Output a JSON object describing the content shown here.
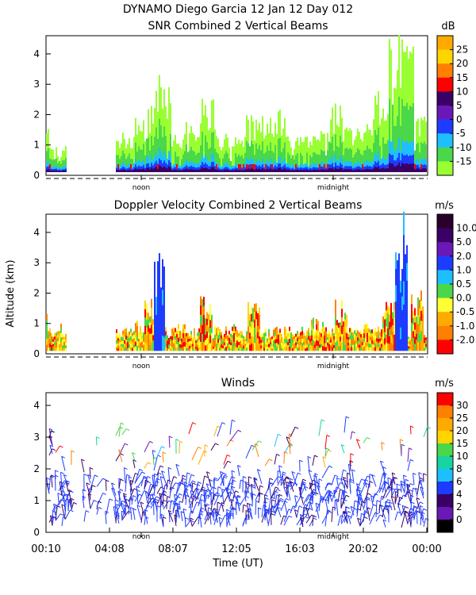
{
  "header": {
    "line1": "DYNAMO Diego Garcia  12 Jan 12 Day 012"
  },
  "shared": {
    "ylabel": "Altitude (km)",
    "xlabel": "Time (UT)",
    "noon_label": "noon",
    "midnight_label": "midnight"
  },
  "chart_data": [
    {
      "type": "heatmap",
      "title": "SNR Combined 2 Vertical Beams",
      "unit": "dB",
      "ylim": [
        0,
        4.6
      ],
      "yticks": [
        "0",
        "1",
        "2",
        "3",
        "4"
      ],
      "colorbar_labels": [
        "25",
        "20",
        "15",
        "10",
        "5",
        "0",
        "-5",
        "-10",
        "-15"
      ],
      "colorbar_colors": [
        "#ffaa00",
        "#ffd500",
        "#ff7f00",
        "#ff0000",
        "#3b0066",
        "#6a18b8",
        "#1e3cff",
        "#1ebfff",
        "#4ad74a",
        "#99ff33"
      ],
      "columns": [
        {
          "t": 0.0,
          "h": 1.5,
          "lvl": 0.3
        },
        {
          "t": 0.35,
          "h": 1.0,
          "lvl": 0.25
        },
        {
          "t": 0.7,
          "h": 0.9,
          "lvl": 0.25
        },
        {
          "t": 4.3,
          "h": 1.2,
          "lvl": 0.3
        },
        {
          "t": 5.0,
          "h": 1.3,
          "lvl": 0.35
        },
        {
          "t": 5.8,
          "h": 1.8,
          "lvl": 0.4
        },
        {
          "t": 6.6,
          "h": 2.3,
          "lvl": 0.5
        },
        {
          "t": 7.0,
          "h": 3.5,
          "lvl": 0.7
        },
        {
          "t": 7.5,
          "h": 3.2,
          "lvl": 0.6
        },
        {
          "t": 8.2,
          "h": 1.4,
          "lvl": 0.35
        },
        {
          "t": 9.0,
          "h": 1.7,
          "lvl": 0.4
        },
        {
          "t": 10.2,
          "h": 2.5,
          "lvl": 0.45
        },
        {
          "t": 11.0,
          "h": 1.3,
          "lvl": 0.35
        },
        {
          "t": 12.0,
          "h": 1.2,
          "lvl": 0.3
        },
        {
          "t": 13.0,
          "h": 1.9,
          "lvl": 0.4
        },
        {
          "t": 14.5,
          "h": 2.1,
          "lvl": 0.35
        },
        {
          "t": 15.5,
          "h": 1.2,
          "lvl": 0.3
        },
        {
          "t": 17.0,
          "h": 1.4,
          "lvl": 0.3
        },
        {
          "t": 18.2,
          "h": 2.3,
          "lvl": 0.45
        },
        {
          "t": 19.0,
          "h": 1.5,
          "lvl": 0.35
        },
        {
          "t": 20.0,
          "h": 1.6,
          "lvl": 0.35
        },
        {
          "t": 21.0,
          "h": 2.8,
          "lvl": 0.5
        },
        {
          "t": 22.0,
          "h": 4.6,
          "lvl": 0.9
        },
        {
          "t": 22.7,
          "h": 4.6,
          "lvl": 1.0
        },
        {
          "t": 23.5,
          "h": 2.0,
          "lvl": 0.4
        }
      ]
    },
    {
      "type": "heatmap",
      "title": "Doppler Velocity Combined 2 Vertical Beams",
      "unit": "m/s",
      "ylim": [
        0,
        4.6
      ],
      "yticks": [
        "0",
        "1",
        "2",
        "3",
        "4"
      ],
      "colorbar_labels": [
        "10.0",
        "5.0",
        "2.0",
        "1.0",
        "0.5",
        "0.0",
        "-0.5",
        "-1.0",
        "-2.0"
      ],
      "colorbar_colors": [
        "#2a002a",
        "#3b0066",
        "#6a18b8",
        "#1e3cff",
        "#1ebfff",
        "#4ad74a",
        "#ffff33",
        "#ffaa00",
        "#ff7f00",
        "#ff0000"
      ],
      "columns": [
        {
          "t": 0.0,
          "h": 1.3,
          "v": "warm"
        },
        {
          "t": 0.5,
          "h": 0.9,
          "v": "warm"
        },
        {
          "t": 4.5,
          "h": 0.8,
          "v": "warm"
        },
        {
          "t": 5.5,
          "h": 1.0,
          "v": "warm"
        },
        {
          "t": 6.5,
          "h": 2.0,
          "v": "warm"
        },
        {
          "t": 7.0,
          "h": 3.4,
          "v": "blue"
        },
        {
          "t": 8.5,
          "h": 1.0,
          "v": "warm"
        },
        {
          "t": 10.0,
          "h": 1.9,
          "v": "warm"
        },
        {
          "t": 12.0,
          "h": 0.9,
          "v": "warm"
        },
        {
          "t": 13.0,
          "h": 1.6,
          "v": "warm"
        },
        {
          "t": 15.0,
          "h": 0.8,
          "v": "warm"
        },
        {
          "t": 17.0,
          "h": 1.1,
          "v": "warm"
        },
        {
          "t": 18.5,
          "h": 1.7,
          "v": "warm"
        },
        {
          "t": 20.0,
          "h": 0.9,
          "v": "warm"
        },
        {
          "t": 21.5,
          "h": 1.8,
          "v": "warm"
        },
        {
          "t": 22.3,
          "h": 4.6,
          "v": "blue"
        },
        {
          "t": 23.3,
          "h": 2.2,
          "v": "warm"
        }
      ]
    },
    {
      "type": "scatter",
      "title": "Winds",
      "unit": "m/s",
      "ylim": [
        0,
        4.4
      ],
      "yticks": [
        "0",
        "1",
        "2",
        "3",
        "4"
      ],
      "xlabel": "Time (UT)",
      "xticks": [
        "00:10",
        "04:08",
        "08:07",
        "12:05",
        "16:03",
        "20:02",
        "00:00"
      ],
      "colorbar_labels": [
        "30",
        "25",
        "20",
        "15",
        "10",
        "8",
        "6",
        "4",
        "2",
        "0"
      ],
      "colorbar_colors": [
        "#ff0000",
        "#ff7f00",
        "#ffaa00",
        "#ffd500",
        "#4ad74a",
        "#17d4a4",
        "#1ebfff",
        "#1e3cff",
        "#3b0066",
        "#6a18b8",
        "#000000"
      ]
    }
  ]
}
